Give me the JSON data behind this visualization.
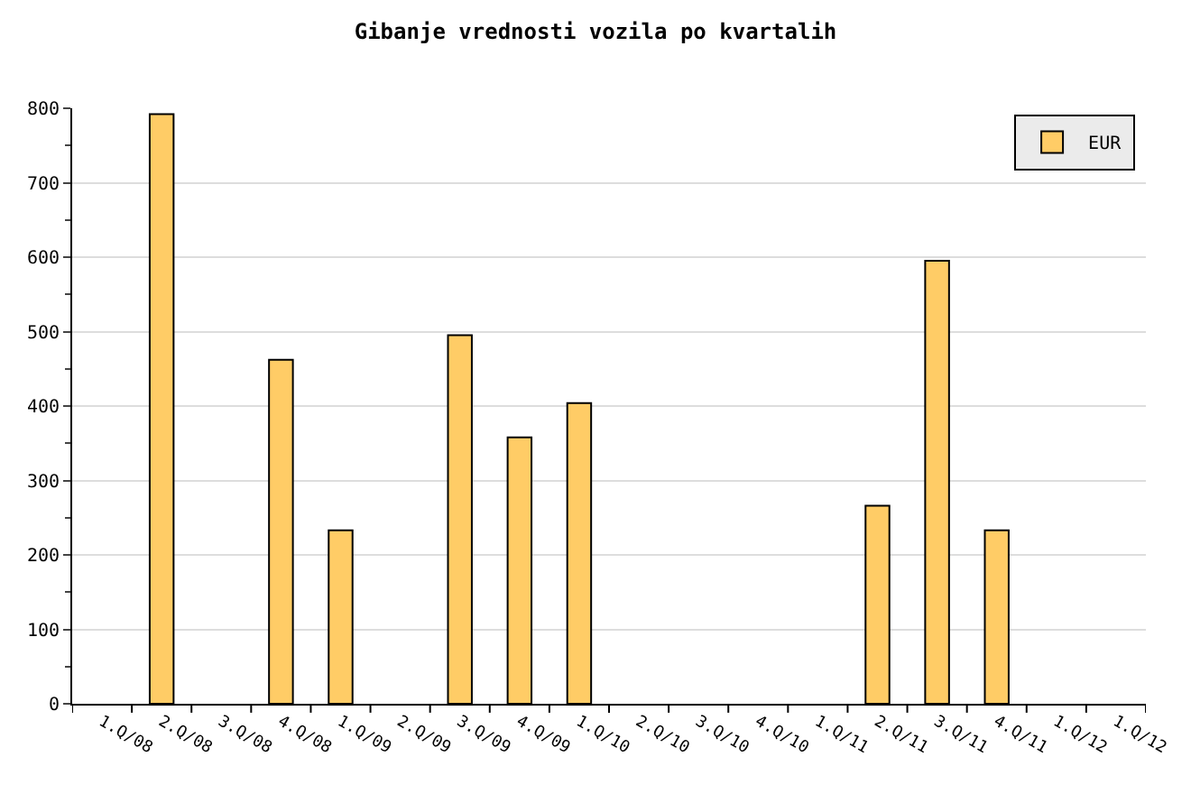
{
  "chart_data": {
    "type": "bar",
    "title": "Gibanje vrednosti vozila po kvartalih",
    "categories": [
      "1.Q/08",
      "2.Q/08",
      "3.Q/08",
      "4.Q/08",
      "1.Q/09",
      "2.Q/09",
      "3.Q/09",
      "4.Q/09",
      "1.Q/10",
      "2.Q/10",
      "3.Q/10",
      "4.Q/10",
      "1.Q/11",
      "2.Q/11",
      "3.Q/11",
      "4.Q/11",
      "1.Q/12",
      "1.Q/12"
    ],
    "series": [
      {
        "name": "EUR",
        "color": "#ffcc66",
        "values": [
          null,
          792,
          null,
          462,
          233,
          null,
          495,
          358,
          404,
          null,
          null,
          null,
          null,
          266,
          595,
          233,
          null,
          null
        ]
      }
    ],
    "ylim": [
      0,
      800
    ],
    "yticks": [
      0,
      100,
      200,
      300,
      400,
      500,
      600,
      700,
      800
    ],
    "grid": "y",
    "legend": "top right"
  }
}
